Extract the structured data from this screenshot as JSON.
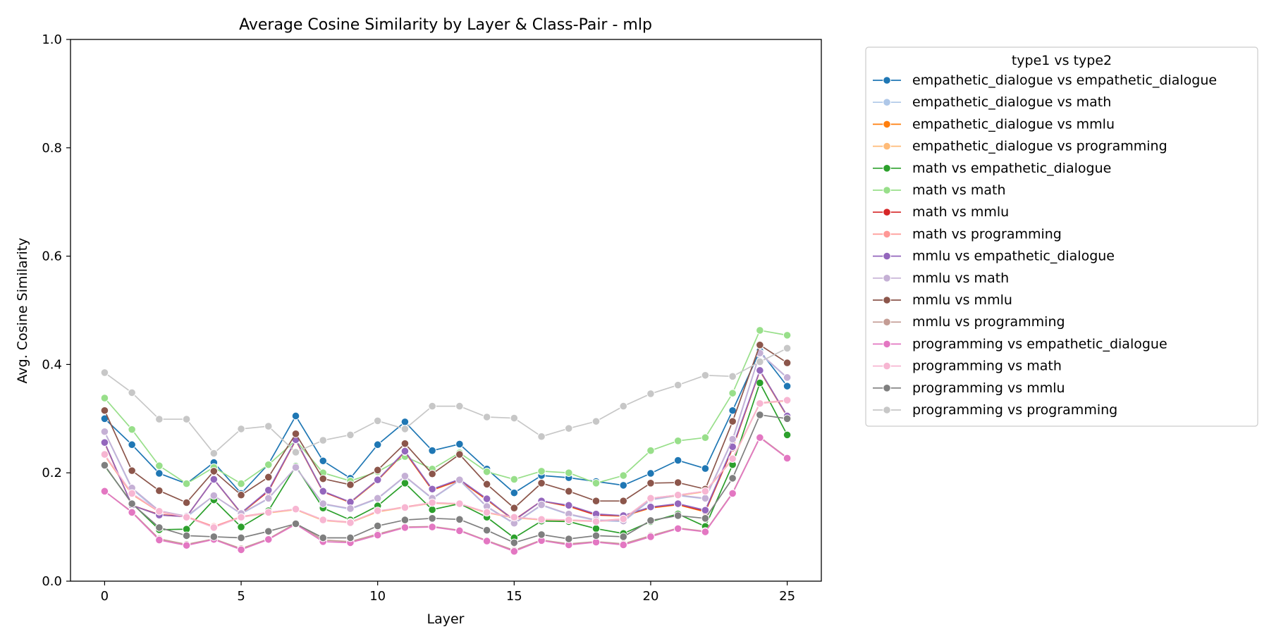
{
  "chart_data": {
    "type": "line",
    "title": "Average Cosine Similarity by Layer & Class-Pair - mlp",
    "xlabel": "Layer",
    "ylabel": "Avg. Cosine Similarity",
    "xlim": [
      -1.25,
      26.25
    ],
    "ylim": [
      0,
      1
    ],
    "xticks": [
      0,
      5,
      10,
      15,
      20,
      25
    ],
    "yticks": [
      0.0,
      0.2,
      0.4,
      0.6,
      0.8,
      1.0
    ],
    "ytick_labels": [
      "0.0",
      "0.2",
      "0.4",
      "0.6",
      "0.8",
      "1.0"
    ],
    "grid": false,
    "legend_title": "type1 vs type2",
    "legend_position": "outside-upper-right",
    "x": [
      0,
      1,
      2,
      3,
      4,
      5,
      6,
      7,
      8,
      9,
      10,
      11,
      12,
      13,
      14,
      15,
      16,
      17,
      18,
      19,
      20,
      21,
      22,
      23,
      24,
      25
    ],
    "series": [
      {
        "name": "empathetic_dialogue vs empathetic_dialogue",
        "color": "#1f77b4",
        "values": [
          0.3,
          0.252,
          0.199,
          0.18,
          0.219,
          0.162,
          0.216,
          0.305,
          0.222,
          0.19,
          0.252,
          0.294,
          0.241,
          0.253,
          0.207,
          0.163,
          0.195,
          0.191,
          0.184,
          0.177,
          0.199,
          0.223,
          0.208,
          0.315,
          0.425,
          0.36
        ]
      },
      {
        "name": "empathetic_dialogue vs math",
        "color": "#aec7e8",
        "values": [
          0.275,
          0.17,
          0.128,
          0.118,
          0.158,
          0.124,
          0.152,
          0.21,
          0.142,
          0.133,
          0.152,
          0.193,
          0.152,
          0.186,
          0.137,
          0.106,
          0.14,
          0.123,
          0.112,
          0.11,
          0.15,
          0.158,
          0.152,
          0.26,
          0.42,
          0.375
        ]
      },
      {
        "name": "empathetic_dialogue vs mmlu",
        "color": "#ff7f0e",
        "values": [
          0.255,
          0.14,
          0.122,
          0.119,
          0.188,
          0.125,
          0.166,
          0.26,
          0.165,
          0.145,
          0.186,
          0.238,
          0.168,
          0.186,
          0.15,
          0.112,
          0.148,
          0.138,
          0.122,
          0.12,
          0.135,
          0.141,
          0.128,
          0.245,
          0.388,
          0.304
        ]
      },
      {
        "name": "empathetic_dialogue vs programming",
        "color": "#ffbb78",
        "values": [
          0.232,
          0.16,
          0.128,
          0.118,
          0.1,
          0.118,
          0.126,
          0.132,
          0.112,
          0.108,
          0.128,
          0.136,
          0.144,
          0.142,
          0.126,
          0.117,
          0.113,
          0.112,
          0.11,
          0.114,
          0.152,
          0.158,
          0.165,
          0.225,
          0.328,
          0.333
        ]
      },
      {
        "name": "math vs empathetic_dialogue",
        "color": "#2ca02c",
        "values": [
          0.213,
          0.144,
          0.095,
          0.096,
          0.15,
          0.1,
          0.13,
          0.212,
          0.135,
          0.113,
          0.139,
          0.181,
          0.132,
          0.143,
          0.118,
          0.08,
          0.111,
          0.11,
          0.097,
          0.088,
          0.11,
          0.124,
          0.101,
          0.215,
          0.366,
          0.27
        ]
      },
      {
        "name": "math vs math",
        "color": "#98df8a",
        "values": [
          0.338,
          0.28,
          0.213,
          0.18,
          0.21,
          0.18,
          0.215,
          0.26,
          0.2,
          0.185,
          0.202,
          0.23,
          0.207,
          0.237,
          0.202,
          0.188,
          0.203,
          0.2,
          0.181,
          0.195,
          0.241,
          0.259,
          0.265,
          0.347,
          0.463,
          0.454
        ]
      },
      {
        "name": "math vs mmlu",
        "color": "#d62728",
        "values": [
          0.256,
          0.14,
          0.123,
          0.119,
          0.188,
          0.126,
          0.166,
          0.261,
          0.165,
          0.146,
          0.187,
          0.239,
          0.169,
          0.187,
          0.151,
          0.113,
          0.148,
          0.139,
          0.122,
          0.121,
          0.136,
          0.142,
          0.129,
          0.246,
          0.389,
          0.305
        ]
      },
      {
        "name": "math vs programming",
        "color": "#ff9896",
        "values": [
          0.233,
          0.161,
          0.128,
          0.119,
          0.101,
          0.119,
          0.127,
          0.133,
          0.113,
          0.109,
          0.129,
          0.137,
          0.145,
          0.143,
          0.127,
          0.118,
          0.114,
          0.113,
          0.111,
          0.115,
          0.153,
          0.159,
          0.166,
          0.226,
          0.329,
          0.334
        ]
      },
      {
        "name": "mmlu vs empathetic_dialogue",
        "color": "#9467bd",
        "values": [
          0.256,
          0.14,
          0.122,
          0.119,
          0.188,
          0.126,
          0.168,
          0.261,
          0.166,
          0.146,
          0.187,
          0.24,
          0.17,
          0.188,
          0.152,
          0.112,
          0.148,
          0.14,
          0.124,
          0.121,
          0.137,
          0.143,
          0.131,
          0.248,
          0.389,
          0.305
        ]
      },
      {
        "name": "mmlu vs math",
        "color": "#c5b0d5",
        "values": [
          0.276,
          0.172,
          0.13,
          0.12,
          0.158,
          0.125,
          0.153,
          0.21,
          0.143,
          0.134,
          0.153,
          0.194,
          0.153,
          0.187,
          0.138,
          0.107,
          0.141,
          0.124,
          0.113,
          0.111,
          0.151,
          0.159,
          0.153,
          0.262,
          0.421,
          0.376
        ]
      },
      {
        "name": "mmlu vs mmlu",
        "color": "#8c564b",
        "values": [
          0.315,
          0.204,
          0.167,
          0.145,
          0.203,
          0.159,
          0.192,
          0.272,
          0.189,
          0.178,
          0.205,
          0.254,
          0.198,
          0.234,
          0.179,
          0.135,
          0.181,
          0.166,
          0.148,
          0.148,
          0.181,
          0.182,
          0.17,
          0.295,
          0.436,
          0.403
        ]
      },
      {
        "name": "mmlu vs programming",
        "color": "#c49c94",
        "values": [
          0.166,
          0.128,
          0.078,
          0.068,
          0.078,
          0.06,
          0.078,
          0.107,
          0.076,
          0.073,
          0.087,
          0.1,
          0.101,
          0.094,
          0.075,
          0.057,
          0.076,
          0.069,
          0.073,
          0.069,
          0.084,
          0.098,
          0.092,
          0.163,
          0.266,
          0.228
        ]
      },
      {
        "name": "programming vs empathetic_dialogue",
        "color": "#e377c2",
        "values": [
          0.166,
          0.127,
          0.076,
          0.066,
          0.077,
          0.058,
          0.077,
          0.105,
          0.073,
          0.071,
          0.085,
          0.099,
          0.1,
          0.093,
          0.074,
          0.055,
          0.075,
          0.067,
          0.072,
          0.067,
          0.082,
          0.097,
          0.091,
          0.162,
          0.265,
          0.227
        ]
      },
      {
        "name": "programming vs math",
        "color": "#f7b6d2",
        "values": [
          0.234,
          0.162,
          0.129,
          0.118,
          0.099,
          0.118,
          0.127,
          0.133,
          0.113,
          0.108,
          0.13,
          0.136,
          0.145,
          0.143,
          0.127,
          0.118,
          0.114,
          0.113,
          0.11,
          0.115,
          0.153,
          0.159,
          0.166,
          0.226,
          0.328,
          0.334
        ]
      },
      {
        "name": "programming vs mmlu",
        "color": "#7f7f7f",
        "values": [
          0.214,
          0.143,
          0.099,
          0.084,
          0.082,
          0.08,
          0.092,
          0.106,
          0.08,
          0.08,
          0.102,
          0.113,
          0.116,
          0.114,
          0.094,
          0.071,
          0.086,
          0.078,
          0.084,
          0.082,
          0.112,
          0.121,
          0.116,
          0.19,
          0.307,
          0.3
        ]
      },
      {
        "name": "programming vs programming",
        "color": "#c7c7c7",
        "values": [
          0.385,
          0.348,
          0.299,
          0.299,
          0.236,
          0.281,
          0.286,
          0.238,
          0.26,
          0.27,
          0.296,
          0.281,
          0.323,
          0.323,
          0.303,
          0.301,
          0.267,
          0.282,
          0.295,
          0.323,
          0.346,
          0.362,
          0.38,
          0.378,
          0.405,
          0.43
        ]
      }
    ]
  }
}
